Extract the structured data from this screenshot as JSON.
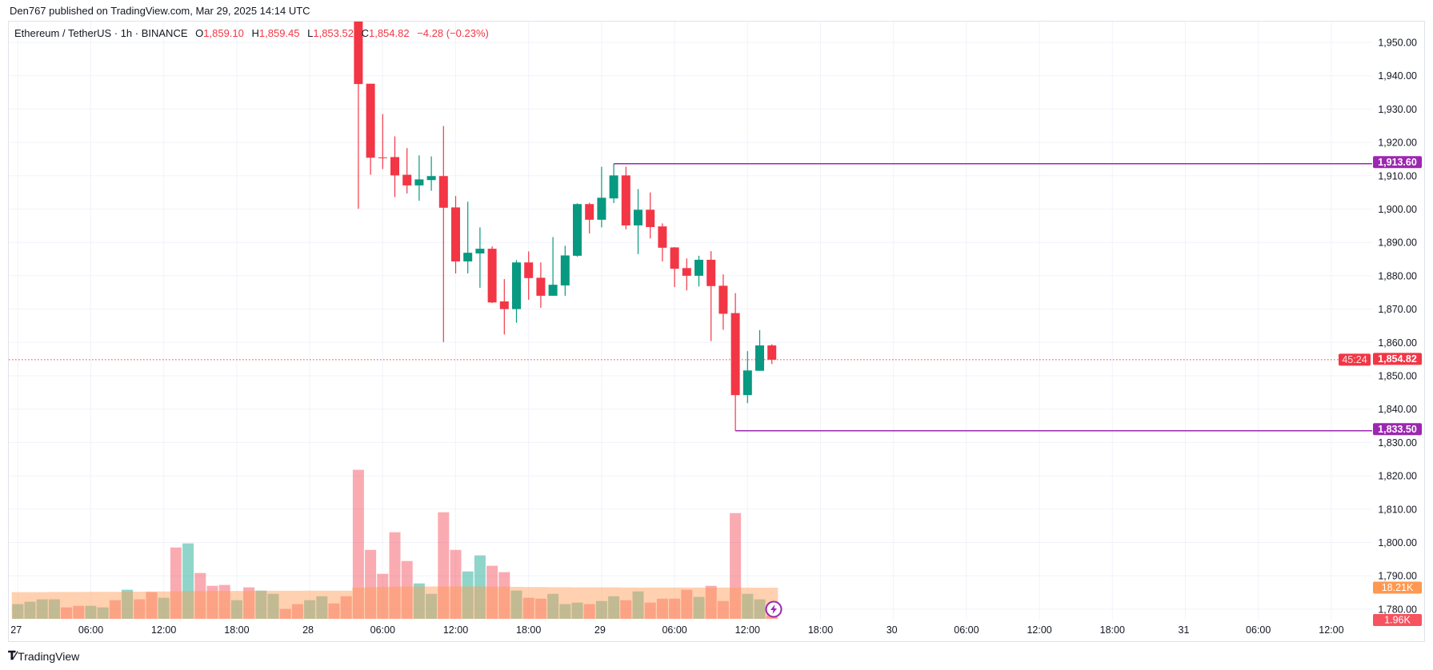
{
  "header": {
    "published": "Den767 published on TradingView.com, Mar 29, 2025 14:14 UTC"
  },
  "legend": {
    "symbol": "Ethereum / TetherUS · 1h · BINANCE",
    "o_label": "O",
    "o": "1,859.10",
    "h_label": "H",
    "h": "1,859.45",
    "l_label": "L",
    "l": "1,853.52",
    "c_label": "C",
    "c": "1,854.82",
    "change": "−4.28 (−0.23%)"
  },
  "branding": {
    "logo_text": "TradingView"
  },
  "colors": {
    "up": "#089981",
    "down": "#f23645",
    "level_line": "#9c27b0",
    "volume_ma": "#ff9850",
    "grid": "#f0f3fa"
  },
  "chart_data": {
    "type": "candlestick",
    "title": "",
    "ylim": [
      1780,
      1956.5
    ],
    "grid": true,
    "price_axis_labels": [
      "1,950.00",
      "1,940.00",
      "1,930.00",
      "1,920.00",
      "1,910.00",
      "1,900.00",
      "1,890.00",
      "1,880.00",
      "1,870.00",
      "1,860.00",
      "1,850.00",
      "1,840.00",
      "1,830.00",
      "1,820.00",
      "1,810.00",
      "1,800.00",
      "1,790.00",
      "1,780.00"
    ],
    "price_axis_values": [
      1950,
      1940,
      1930,
      1920,
      1910,
      1900,
      1890,
      1880,
      1870,
      1860,
      1850,
      1840,
      1830,
      1820,
      1810,
      1800,
      1790,
      1780
    ],
    "time_axis": [
      {
        "t": "2025-03-27T00:00",
        "label": "27"
      },
      {
        "t": "2025-03-27T06:00",
        "label": "06:00"
      },
      {
        "t": "2025-03-27T12:00",
        "label": "12:00"
      },
      {
        "t": "2025-03-27T18:00",
        "label": "18:00"
      },
      {
        "t": "2025-03-28T00:00",
        "label": "28"
      },
      {
        "t": "2025-03-28T06:00",
        "label": "06:00"
      },
      {
        "t": "2025-03-28T12:00",
        "label": "12:00"
      },
      {
        "t": "2025-03-28T18:00",
        "label": "18:00"
      },
      {
        "t": "2025-03-29T00:00",
        "label": "29"
      },
      {
        "t": "2025-03-29T06:00",
        "label": "06:00"
      },
      {
        "t": "2025-03-29T12:00",
        "label": "12:00"
      },
      {
        "t": "2025-03-29T18:00",
        "label": "18:00"
      },
      {
        "t": "2025-03-30T00:00",
        "label": "30"
      },
      {
        "t": "2025-03-30T06:00",
        "label": "06:00"
      },
      {
        "t": "2025-03-30T12:00",
        "label": "12:00"
      },
      {
        "t": "2025-03-30T18:00",
        "label": "18:00"
      },
      {
        "t": "2025-03-31T00:00",
        "label": "31"
      },
      {
        "t": "2025-03-31T06:00",
        "label": "06:00"
      },
      {
        "t": "2025-03-31T12:00",
        "label": "12:00"
      }
    ],
    "candles": [
      {
        "t": "2025-03-28T04:00",
        "o": 1958,
        "h": 1958,
        "l": 1900.1,
        "c": 1937.5
      },
      {
        "t": "2025-03-28T05:00",
        "o": 1937.6,
        "h": 1937.6,
        "l": 1910.3,
        "c": 1915.4
      },
      {
        "t": "2025-03-28T06:00",
        "o": 1915.5,
        "h": 1928.5,
        "l": 1912.0,
        "c": 1915.4
      },
      {
        "t": "2025-03-28T07:00",
        "o": 1915.6,
        "h": 1921.8,
        "l": 1903.6,
        "c": 1910.1
      },
      {
        "t": "2025-03-28T08:00",
        "o": 1910.3,
        "h": 1918.3,
        "l": 1904.7,
        "c": 1907.1
      },
      {
        "t": "2025-03-28T09:00",
        "o": 1907.1,
        "h": 1916.1,
        "l": 1902.5,
        "c": 1908.9
      },
      {
        "t": "2025-03-28T10:00",
        "o": 1908.7,
        "h": 1915.8,
        "l": 1905.5,
        "c": 1909.9
      },
      {
        "t": "2025-03-28T11:00",
        "o": 1909.9,
        "h": 1924.9,
        "l": 1860.1,
        "c": 1900.4
      },
      {
        "t": "2025-03-28T12:00",
        "o": 1900.5,
        "h": 1903.9,
        "l": 1880.7,
        "c": 1884.3
      },
      {
        "t": "2025-03-28T13:00",
        "o": 1884.3,
        "h": 1902.2,
        "l": 1880.7,
        "c": 1886.9
      },
      {
        "t": "2025-03-28T14:00",
        "o": 1886.7,
        "h": 1894.5,
        "l": 1876.4,
        "c": 1888.1
      },
      {
        "t": "2025-03-28T15:00",
        "o": 1888.1,
        "h": 1888.8,
        "l": 1871.8,
        "c": 1872.0
      },
      {
        "t": "2025-03-28T16:00",
        "o": 1872.3,
        "h": 1879.0,
        "l": 1862.4,
        "c": 1870.0
      },
      {
        "t": "2025-03-28T17:00",
        "o": 1870.0,
        "h": 1884.7,
        "l": 1865.9,
        "c": 1884.0
      },
      {
        "t": "2025-03-28T18:00",
        "o": 1884.0,
        "h": 1887.3,
        "l": 1872.8,
        "c": 1879.3
      },
      {
        "t": "2025-03-28T19:00",
        "o": 1879.4,
        "h": 1884.0,
        "l": 1870.4,
        "c": 1874.0
      },
      {
        "t": "2025-03-28T20:00",
        "o": 1874.0,
        "h": 1891.6,
        "l": 1874.0,
        "c": 1877.3
      },
      {
        "t": "2025-03-28T21:00",
        "o": 1877.1,
        "h": 1889.0,
        "l": 1874.0,
        "c": 1886.1
      },
      {
        "t": "2025-03-28T22:00",
        "o": 1886.0,
        "h": 1901.7,
        "l": 1885.7,
        "c": 1901.5
      },
      {
        "t": "2025-03-28T23:00",
        "o": 1901.5,
        "h": 1901.9,
        "l": 1892.7,
        "c": 1896.8
      },
      {
        "t": "2025-03-29T00:00",
        "o": 1896.8,
        "h": 1912.7,
        "l": 1894.5,
        "c": 1903.4
      },
      {
        "t": "2025-03-29T01:00",
        "o": 1903.2,
        "h": 1913.6,
        "l": 1901.8,
        "c": 1910.1
      },
      {
        "t": "2025-03-29T02:00",
        "o": 1910.1,
        "h": 1912.7,
        "l": 1893.9,
        "c": 1895.1
      },
      {
        "t": "2025-03-29T03:00",
        "o": 1895.1,
        "h": 1906.0,
        "l": 1886.5,
        "c": 1899.8
      },
      {
        "t": "2025-03-29T04:00",
        "o": 1899.8,
        "h": 1905.0,
        "l": 1891.2,
        "c": 1894.6
      },
      {
        "t": "2025-03-29T05:00",
        "o": 1894.8,
        "h": 1895.7,
        "l": 1884.3,
        "c": 1888.4
      },
      {
        "t": "2025-03-29T06:00",
        "o": 1888.5,
        "h": 1888.6,
        "l": 1876.6,
        "c": 1882.1
      },
      {
        "t": "2025-03-29T07:00",
        "o": 1882.3,
        "h": 1885.2,
        "l": 1875.6,
        "c": 1880.0
      },
      {
        "t": "2025-03-29T08:00",
        "o": 1880.0,
        "h": 1886.0,
        "l": 1876.8,
        "c": 1884.8
      },
      {
        "t": "2025-03-29T09:00",
        "o": 1884.8,
        "h": 1887.4,
        "l": 1860.4,
        "c": 1876.9
      },
      {
        "t": "2025-03-29T10:00",
        "o": 1877.0,
        "h": 1880.4,
        "l": 1863.8,
        "c": 1868.6
      },
      {
        "t": "2025-03-29T11:00",
        "o": 1868.8,
        "h": 1874.8,
        "l": 1833.5,
        "c": 1844.2
      },
      {
        "t": "2025-03-29T12:00",
        "o": 1844.2,
        "h": 1857.4,
        "l": 1841.8,
        "c": 1851.6
      },
      {
        "t": "2025-03-29T13:00",
        "o": 1851.5,
        "h": 1863.7,
        "l": 1851.5,
        "c": 1859.1
      },
      {
        "t": "2025-03-29T14:00",
        "o": 1859.1,
        "h": 1859.45,
        "l": 1853.52,
        "c": 1854.82
      }
    ],
    "volume_unit": "K",
    "volume": [
      {
        "t": "2025-03-27T00:00",
        "v": 8.6,
        "d": "up"
      },
      {
        "t": "2025-03-27T01:00",
        "v": 10.0,
        "d": "up"
      },
      {
        "t": "2025-03-27T02:00",
        "v": 11.4,
        "d": "up"
      },
      {
        "t": "2025-03-27T03:00",
        "v": 11.4,
        "d": "up"
      },
      {
        "t": "2025-03-27T04:00",
        "v": 6.7,
        "d": "down"
      },
      {
        "t": "2025-03-27T05:00",
        "v": 7.6,
        "d": "down"
      },
      {
        "t": "2025-03-27T06:00",
        "v": 7.6,
        "d": "up"
      },
      {
        "t": "2025-03-27T07:00",
        "v": 6.7,
        "d": "up"
      },
      {
        "t": "2025-03-27T08:00",
        "v": 10.9,
        "d": "down"
      },
      {
        "t": "2025-03-27T09:00",
        "v": 17.0,
        "d": "up"
      },
      {
        "t": "2025-03-27T10:00",
        "v": 11.4,
        "d": "down"
      },
      {
        "t": "2025-03-27T11:00",
        "v": 15.6,
        "d": "down"
      },
      {
        "t": "2025-03-27T12:00",
        "v": 12.3,
        "d": "up"
      },
      {
        "t": "2025-03-27T13:00",
        "v": 41.7,
        "d": "down"
      },
      {
        "t": "2025-03-27T14:00",
        "v": 44.1,
        "d": "up"
      },
      {
        "t": "2025-03-27T15:00",
        "v": 26.8,
        "d": "down"
      },
      {
        "t": "2025-03-27T16:00",
        "v": 19.3,
        "d": "down"
      },
      {
        "t": "2025-03-27T17:00",
        "v": 19.8,
        "d": "down"
      },
      {
        "t": "2025-03-27T18:00",
        "v": 10.9,
        "d": "up"
      },
      {
        "t": "2025-03-27T19:00",
        "v": 18.4,
        "d": "down"
      },
      {
        "t": "2025-03-27T20:00",
        "v": 16.5,
        "d": "up"
      },
      {
        "t": "2025-03-27T21:00",
        "v": 14.6,
        "d": "up"
      },
      {
        "t": "2025-03-27T22:00",
        "v": 5.8,
        "d": "down"
      },
      {
        "t": "2025-03-27T23:00",
        "v": 8.6,
        "d": "down"
      },
      {
        "t": "2025-03-28T00:00",
        "v": 10.9,
        "d": "up"
      },
      {
        "t": "2025-03-28T01:00",
        "v": 13.2,
        "d": "up"
      },
      {
        "t": "2025-03-28T02:00",
        "v": 9.0,
        "d": "down"
      },
      {
        "t": "2025-03-28T03:00",
        "v": 13.2,
        "d": "down"
      },
      {
        "t": "2025-03-28T04:00",
        "v": 87.1,
        "d": "down"
      },
      {
        "t": "2025-03-28T05:00",
        "v": 40.3,
        "d": "down"
      },
      {
        "t": "2025-03-28T06:00",
        "v": 26.3,
        "d": "down"
      },
      {
        "t": "2025-03-28T07:00",
        "v": 50.6,
        "d": "down"
      },
      {
        "t": "2025-03-28T08:00",
        "v": 33.8,
        "d": "down"
      },
      {
        "t": "2025-03-28T09:00",
        "v": 20.7,
        "d": "up"
      },
      {
        "t": "2025-03-28T10:00",
        "v": 14.6,
        "d": "up"
      },
      {
        "t": "2025-03-28T11:00",
        "v": 62.3,
        "d": "down"
      },
      {
        "t": "2025-03-28T12:00",
        "v": 40.3,
        "d": "down"
      },
      {
        "t": "2025-03-28T13:00",
        "v": 27.7,
        "d": "up"
      },
      {
        "t": "2025-03-28T14:00",
        "v": 37.1,
        "d": "up"
      },
      {
        "t": "2025-03-28T15:00",
        "v": 31.0,
        "d": "down"
      },
      {
        "t": "2025-03-28T16:00",
        "v": 27.3,
        "d": "down"
      },
      {
        "t": "2025-03-28T17:00",
        "v": 16.5,
        "d": "up"
      },
      {
        "t": "2025-03-28T18:00",
        "v": 12.3,
        "d": "down"
      },
      {
        "t": "2025-03-28T19:00",
        "v": 11.8,
        "d": "down"
      },
      {
        "t": "2025-03-28T20:00",
        "v": 14.6,
        "d": "up"
      },
      {
        "t": "2025-03-28T21:00",
        "v": 8.6,
        "d": "up"
      },
      {
        "t": "2025-03-28T22:00",
        "v": 9.5,
        "d": "up"
      },
      {
        "t": "2025-03-28T23:00",
        "v": 8.6,
        "d": "down"
      },
      {
        "t": "2025-03-29T00:00",
        "v": 10.4,
        "d": "up"
      },
      {
        "t": "2025-03-29T01:00",
        "v": 13.2,
        "d": "up"
      },
      {
        "t": "2025-03-29T02:00",
        "v": 10.9,
        "d": "down"
      },
      {
        "t": "2025-03-29T03:00",
        "v": 16.0,
        "d": "up"
      },
      {
        "t": "2025-03-29T04:00",
        "v": 9.5,
        "d": "down"
      },
      {
        "t": "2025-03-29T05:00",
        "v": 11.8,
        "d": "down"
      },
      {
        "t": "2025-03-29T06:00",
        "v": 11.8,
        "d": "down"
      },
      {
        "t": "2025-03-29T07:00",
        "v": 17.0,
        "d": "down"
      },
      {
        "t": "2025-03-29T08:00",
        "v": 12.8,
        "d": "up"
      },
      {
        "t": "2025-03-29T09:00",
        "v": 19.3,
        "d": "down"
      },
      {
        "t": "2025-03-29T10:00",
        "v": 10.4,
        "d": "down"
      },
      {
        "t": "2025-03-29T11:00",
        "v": 61.8,
        "d": "down"
      },
      {
        "t": "2025-03-29T12:00",
        "v": 14.6,
        "d": "up"
      },
      {
        "t": "2025-03-29T13:00",
        "v": 11.4,
        "d": "up"
      },
      {
        "t": "2025-03-29T14:00",
        "v": 1.96,
        "d": "down"
      }
    ],
    "volume_ma": [
      15.6,
      15.6,
      15.6,
      15.7,
      15.7,
      15.7,
      15.8,
      15.8,
      15.8,
      15.9,
      15.9,
      16.0,
      16.0,
      16.1,
      16.2,
      16.2,
      16.3,
      16.3,
      16.3,
      16.4,
      16.4,
      16.4,
      16.4,
      16.4,
      16.5,
      16.5,
      16.5,
      16.5,
      18.3,
      18.5,
      18.6,
      18.8,
      18.9,
      18.9,
      18.9,
      18.9,
      18.9,
      18.9,
      18.9,
      18.8,
      18.8,
      18.7,
      18.6,
      18.6,
      18.5,
      18.5,
      18.4,
      18.4,
      18.4,
      18.4,
      18.3,
      18.3,
      18.3,
      18.3,
      18.3,
      18.3,
      18.3,
      18.3,
      18.3,
      18.3,
      18.2,
      18.2,
      18.21
    ],
    "levels": [
      {
        "price": 1913.6,
        "label": "1,913.60",
        "from": "2025-03-29T01:00"
      },
      {
        "price": 1833.5,
        "label": "1,833.50",
        "from": "2025-03-29T11:00"
      }
    ],
    "last_price": {
      "price": 1854.82,
      "label": "1,854.82",
      "countdown": "45:24"
    },
    "volume_ma_label": "18.21K",
    "volume_last_label": "1.96K"
  }
}
